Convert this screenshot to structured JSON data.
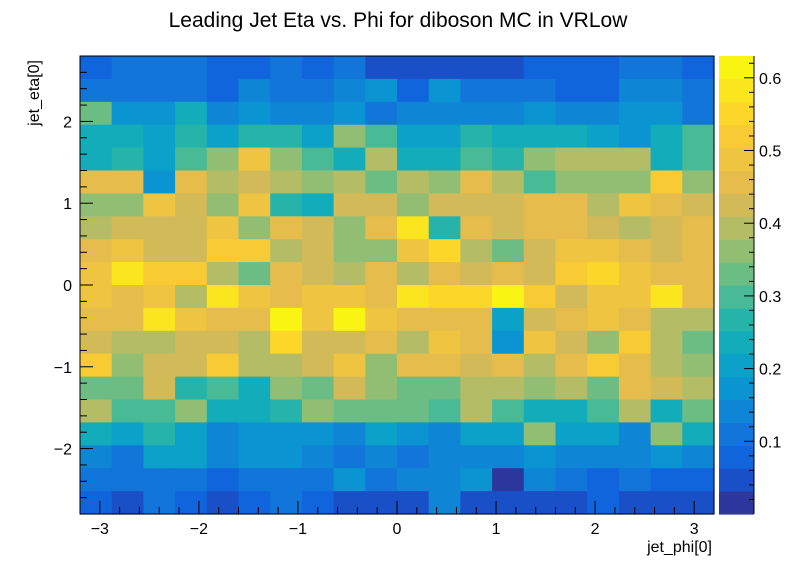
{
  "chart_data": {
    "type": "heatmap",
    "title": "Leading Jet Eta vs. Phi for diboson MC in VRLow",
    "xlabel": "jet_phi[0]",
    "ylabel": "jet_eta[0]",
    "xlim": [
      -3.2,
      3.2
    ],
    "ylim": [
      -2.8,
      2.8
    ],
    "zlim": [
      0,
      0.63
    ],
    "x_ticks": [
      -3,
      -2,
      -1,
      0,
      1,
      2,
      3
    ],
    "x_tick_labels": [
      "−3",
      "−2",
      "−1",
      "0",
      "1",
      "2",
      "3"
    ],
    "y_ticks": [
      -2,
      -1,
      0,
      1,
      2
    ],
    "y_tick_labels": [
      "−2",
      "−1",
      "0",
      "1",
      "2"
    ],
    "z_ticks": [
      0.1,
      0.2,
      0.3,
      0.4,
      0.5,
      0.6
    ],
    "z_tick_labels": [
      "0.1",
      "0.2",
      "0.3",
      "0.4",
      "0.5",
      "0.6"
    ],
    "x_bins": 20,
    "y_bins": 20,
    "z_rows_top_to_bottom": [
      [
        0.08,
        0.1,
        0.1,
        0.1,
        0.08,
        0.07,
        0.1,
        0.07,
        0.1,
        0.06,
        0.06,
        0.06,
        0.06,
        0.06,
        0.07,
        0.07,
        0.08,
        0.1,
        0.1,
        0.09
      ],
      [
        0.1,
        0.12,
        0.12,
        0.12,
        0.08,
        0.15,
        0.1,
        0.12,
        0.14,
        0.17,
        0.08,
        0.16,
        0.12,
        0.1,
        0.1,
        0.09,
        0.09,
        0.13,
        0.14,
        0.12
      ],
      [
        0.33,
        0.18,
        0.18,
        0.23,
        0.15,
        0.17,
        0.15,
        0.15,
        0.17,
        0.12,
        0.13,
        0.13,
        0.15,
        0.14,
        0.17,
        0.15,
        0.15,
        0.17,
        0.17,
        0.12
      ],
      [
        0.25,
        0.25,
        0.2,
        0.28,
        0.22,
        0.27,
        0.28,
        0.2,
        0.35,
        0.3,
        0.2,
        0.22,
        0.28,
        0.25,
        0.25,
        0.25,
        0.2,
        0.18,
        0.25,
        0.3
      ],
      [
        0.23,
        0.27,
        0.2,
        0.3,
        0.35,
        0.48,
        0.35,
        0.3,
        0.25,
        0.38,
        0.23,
        0.23,
        0.3,
        0.28,
        0.35,
        0.38,
        0.38,
        0.38,
        0.25,
        0.3
      ],
      [
        0.45,
        0.45,
        0.18,
        0.45,
        0.4,
        0.42,
        0.4,
        0.35,
        0.4,
        0.33,
        0.4,
        0.37,
        0.45,
        0.38,
        0.3,
        0.35,
        0.37,
        0.35,
        0.53,
        0.37
      ],
      [
        0.35,
        0.37,
        0.5,
        0.43,
        0.37,
        0.5,
        0.28,
        0.25,
        0.43,
        0.43,
        0.37,
        0.43,
        0.43,
        0.43,
        0.47,
        0.45,
        0.4,
        0.5,
        0.45,
        0.42
      ],
      [
        0.38,
        0.43,
        0.42,
        0.42,
        0.48,
        0.35,
        0.45,
        0.43,
        0.37,
        0.47,
        0.57,
        0.28,
        0.47,
        0.43,
        0.47,
        0.45,
        0.43,
        0.38,
        0.43,
        0.47
      ],
      [
        0.47,
        0.5,
        0.43,
        0.43,
        0.53,
        0.53,
        0.4,
        0.43,
        0.35,
        0.35,
        0.5,
        0.55,
        0.38,
        0.33,
        0.42,
        0.5,
        0.5,
        0.45,
        0.42,
        0.47
      ],
      [
        0.48,
        0.57,
        0.53,
        0.53,
        0.4,
        0.32,
        0.45,
        0.43,
        0.4,
        0.45,
        0.4,
        0.47,
        0.42,
        0.47,
        0.42,
        0.52,
        0.55,
        0.48,
        0.47,
        0.45
      ],
      [
        0.5,
        0.47,
        0.5,
        0.4,
        0.57,
        0.5,
        0.47,
        0.5,
        0.48,
        0.47,
        0.57,
        0.55,
        0.55,
        0.63,
        0.52,
        0.43,
        0.5,
        0.48,
        0.57,
        0.47
      ],
      [
        0.45,
        0.45,
        0.57,
        0.48,
        0.45,
        0.45,
        0.62,
        0.48,
        0.63,
        0.48,
        0.45,
        0.45,
        0.47,
        0.22,
        0.43,
        0.47,
        0.48,
        0.45,
        0.38,
        0.4
      ],
      [
        0.43,
        0.4,
        0.4,
        0.43,
        0.43,
        0.4,
        0.55,
        0.42,
        0.43,
        0.47,
        0.4,
        0.48,
        0.45,
        0.18,
        0.5,
        0.43,
        0.37,
        0.52,
        0.4,
        0.33
      ],
      [
        0.52,
        0.37,
        0.43,
        0.43,
        0.52,
        0.38,
        0.4,
        0.42,
        0.48,
        0.37,
        0.45,
        0.45,
        0.43,
        0.47,
        0.4,
        0.47,
        0.52,
        0.45,
        0.38,
        0.37
      ],
      [
        0.33,
        0.33,
        0.43,
        0.27,
        0.3,
        0.25,
        0.35,
        0.33,
        0.43,
        0.35,
        0.33,
        0.33,
        0.4,
        0.38,
        0.37,
        0.4,
        0.33,
        0.45,
        0.42,
        0.38
      ],
      [
        0.4,
        0.3,
        0.3,
        0.35,
        0.25,
        0.23,
        0.27,
        0.35,
        0.33,
        0.33,
        0.33,
        0.3,
        0.38,
        0.3,
        0.23,
        0.25,
        0.3,
        0.38,
        0.25,
        0.33
      ],
      [
        0.23,
        0.22,
        0.27,
        0.2,
        0.15,
        0.18,
        0.17,
        0.18,
        0.15,
        0.2,
        0.18,
        0.15,
        0.2,
        0.2,
        0.35,
        0.2,
        0.2,
        0.15,
        0.35,
        0.25
      ],
      [
        0.15,
        0.12,
        0.2,
        0.2,
        0.13,
        0.16,
        0.16,
        0.15,
        0.12,
        0.13,
        0.12,
        0.14,
        0.14,
        0.15,
        0.18,
        0.13,
        0.14,
        0.13,
        0.16,
        0.14
      ],
      [
        0.1,
        0.1,
        0.12,
        0.12,
        0.09,
        0.12,
        0.1,
        0.12,
        0.18,
        0.12,
        0.13,
        0.14,
        0.17,
        0.02,
        0.13,
        0.1,
        0.07,
        0.12,
        0.08,
        0.08
      ],
      [
        0.08,
        0.06,
        0.1,
        0.07,
        0.05,
        0.09,
        0.1,
        0.07,
        0.06,
        0.06,
        0.06,
        0.13,
        0.06,
        0.06,
        0.04,
        0.05,
        0.07,
        0.06,
        0.05,
        0.06
      ]
    ]
  }
}
